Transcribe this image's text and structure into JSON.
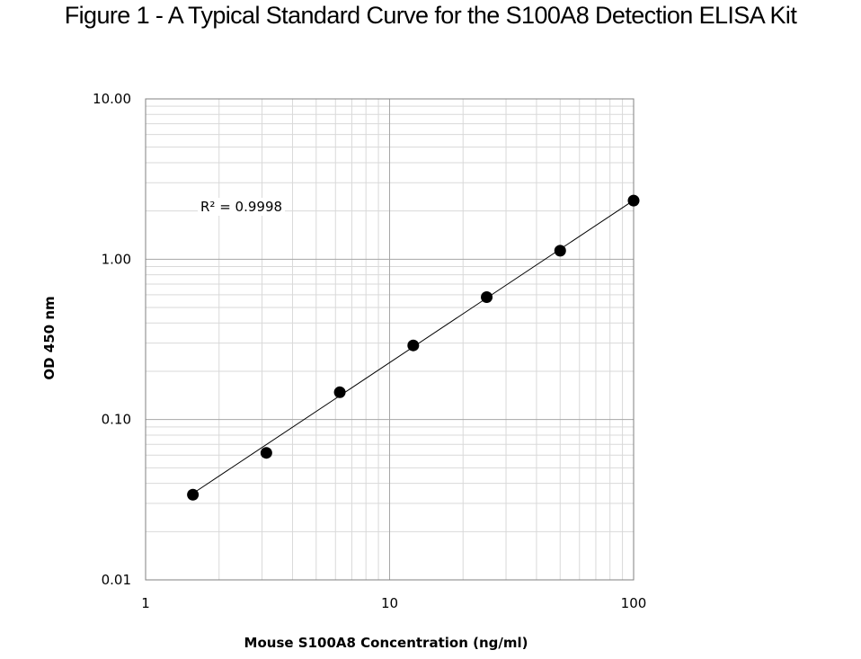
{
  "figure_title": "Figure 1 - A Typical Standard Curve for the S100A8 Detection ELISA Kit",
  "chart_data": {
    "type": "scatter",
    "title": "Figure 1 - A Typical Standard Curve for the S100A8 Detection ELISA Kit",
    "xlabel": "Mouse S100A8 Concentration (ng/ml)",
    "ylabel": "OD 450 nm",
    "x_scale": "log",
    "y_scale": "log",
    "xlim": [
      1,
      100
    ],
    "ylim": [
      0.01,
      10
    ],
    "x_ticks": [
      "1",
      "10",
      "100"
    ],
    "y_ticks": [
      "0.01",
      "0.10",
      "1.00",
      "10.00"
    ],
    "grid": true,
    "annotation": "R² = 0.9998",
    "series": [
      {
        "x": [
          1.5625,
          3.125,
          6.25,
          12.5,
          25,
          50,
          100
        ],
        "y": [
          0.034,
          0.062,
          0.148,
          0.29,
          0.58,
          1.13,
          2.32
        ]
      }
    ],
    "trendline": {
      "type": "power",
      "x": [
        1.5625,
        100
      ],
      "y": [
        0.0346,
        2.33
      ]
    },
    "colors": {
      "marker": "#000000",
      "trendline": "#000000",
      "major_grid": "#a6a6a6",
      "minor_grid": "#d9d9d9"
    }
  }
}
